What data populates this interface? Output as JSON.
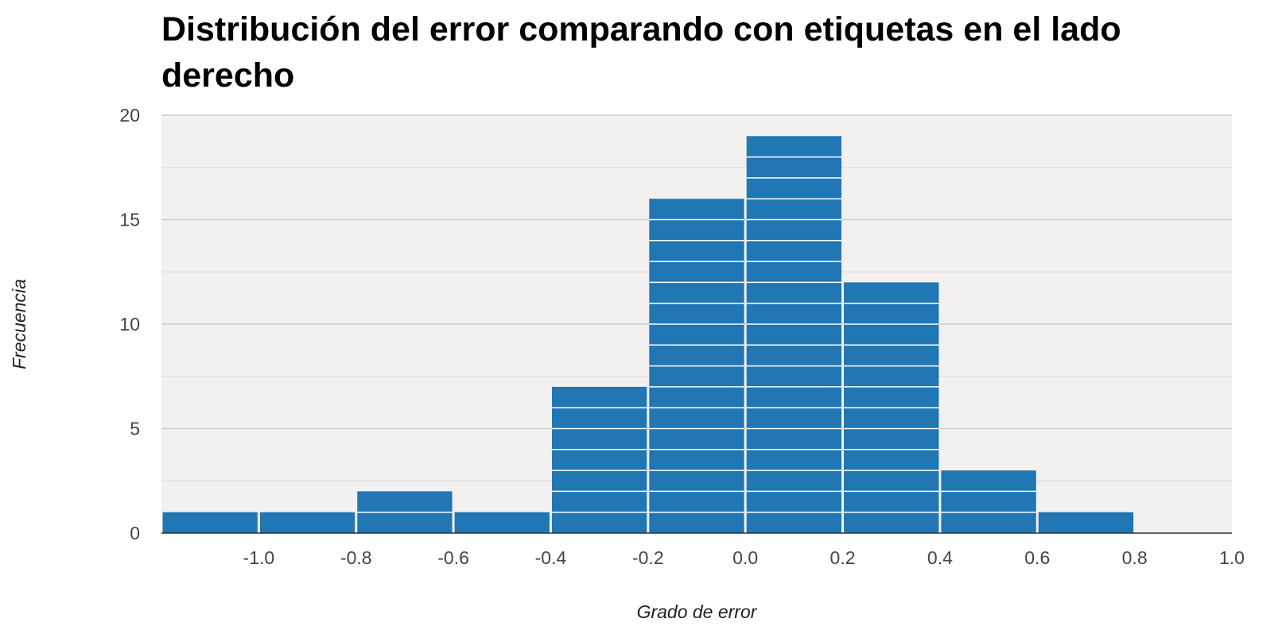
{
  "chart_data": {
    "type": "bar",
    "title": "Distribución del error comparando con etiquetas en el lado derecho",
    "xlabel": "Grado de error",
    "ylabel": "Frecuencia",
    "bin_edges": [
      -1.2,
      -1.0,
      -0.8,
      -0.6,
      -0.4,
      -0.2,
      0.0,
      0.2,
      0.4,
      0.6,
      0.8,
      1.0
    ],
    "values": [
      1,
      1,
      2,
      1,
      7,
      16,
      19,
      12,
      3,
      1,
      0
    ],
    "xlim": [
      -1.2,
      1.0
    ],
    "ylim": [
      0,
      20
    ],
    "x_ticks": [
      -1.0,
      -0.8,
      -0.6,
      -0.4,
      -0.2,
      0.0,
      0.2,
      0.4,
      0.6,
      0.8,
      1.0
    ],
    "x_tick_labels": [
      "-1.0",
      "-0.8",
      "-0.6",
      "-0.4",
      "-0.2",
      "0.0",
      "0.2",
      "0.4",
      "0.6",
      "0.8",
      "1.0"
    ],
    "y_ticks": [
      0,
      5,
      10,
      15,
      20
    ],
    "y_tick_labels": [
      "0",
      "5",
      "10",
      "15",
      "20"
    ],
    "y_minor_ticks": [
      2.5,
      7.5,
      12.5,
      17.5
    ],
    "grid": true,
    "legend": "none",
    "colors": {
      "bar": "#2176b4",
      "plot_background": "#f2f1f0",
      "major_grid": "#cccccc",
      "minor_grid": "#e2e2e2",
      "baseline": "#333333",
      "unit_line": "#ffffff"
    }
  }
}
